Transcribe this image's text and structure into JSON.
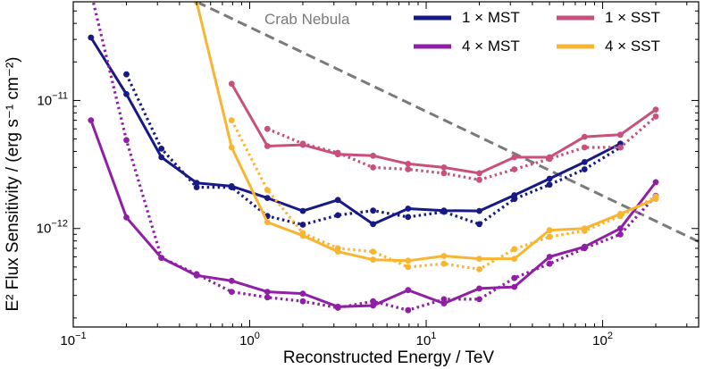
{
  "chart_data": {
    "type": "line",
    "xlabel": "Reconstructed Energy / TeV",
    "ylabel": "E² Flux Sensitivity / (erg s⁻¹ cm⁻²)",
    "xscale": "log",
    "yscale": "log",
    "xlim": [
      0.1,
      350
    ],
    "ylim": [
      1.7e-13,
      5.9e-11
    ],
    "grid": false,
    "legend_placement": "top-right",
    "xticks": [
      {
        "value": 0.1,
        "base": "10",
        "exp": "−1"
      },
      {
        "value": 1,
        "base": "10",
        "exp": "0"
      },
      {
        "value": 10,
        "base": "10",
        "exp": "1"
      },
      {
        "value": 100,
        "base": "10",
        "exp": "2"
      }
    ],
    "yticks": [
      {
        "value": 1e-12,
        "base": "10",
        "exp": "−12"
      },
      {
        "value": 1e-11,
        "base": "10",
        "exp": "−11"
      }
    ],
    "annotation": {
      "text": "Crab Nebula",
      "line": [
        [
          0.5,
          5.9e-11
        ],
        [
          350,
          7.9e-13
        ]
      ],
      "color": "#7a7a7a"
    },
    "series": [
      {
        "name": "1 × MST",
        "style": "solid",
        "color": "#171a85",
        "x": [
          0.126,
          0.2,
          0.316,
          0.5,
          0.79,
          1.26,
          2.0,
          3.16,
          5.0,
          7.9,
          12.6,
          20,
          31.6,
          50,
          79,
          126
        ],
        "y": [
          3.1e-11,
          1.12e-11,
          3.6e-12,
          2.27e-12,
          2.14e-12,
          1.73e-12,
          1.37e-12,
          1.67e-12,
          1.08e-12,
          1.43e-12,
          1.38e-12,
          1.37e-12,
          1.82e-12,
          2.45e-12,
          3.3e-12,
          4.6e-12
        ]
      },
      {
        "name": "1 × MST",
        "style": "dotted",
        "color": "#171a85",
        "x": [
          0.2,
          0.316,
          0.5,
          0.79,
          1.26,
          2.0,
          3.16,
          5.0,
          7.9,
          12.6,
          20,
          31.6,
          50,
          79,
          126
        ],
        "y": [
          1.6e-11,
          4.2e-12,
          2.1e-12,
          2.1e-12,
          1.25e-12,
          1.07e-12,
          1.27e-12,
          1.38e-12,
          1.23e-12,
          1.35e-12,
          1.08e-12,
          1.7e-12,
          2.2e-12,
          2.9e-12,
          4.3e-12
        ]
      },
      {
        "name": "1 × SST",
        "style": "solid",
        "color": "#c94f7c",
        "x": [
          0.79,
          1.26,
          2.0,
          3.16,
          5.0,
          7.9,
          12.6,
          20,
          31.6,
          50,
          79,
          126,
          200
        ],
        "y": [
          1.35e-11,
          4.4e-12,
          4.5e-12,
          3.8e-12,
          3.7e-12,
          3.2e-12,
          3e-12,
          2.7e-12,
          3.6e-12,
          3.6e-12,
          5.2e-12,
          5.4e-12,
          8.5e-12
        ]
      },
      {
        "name": "1 × SST",
        "style": "dotted",
        "color": "#c94f7c",
        "x": [
          1.26,
          2.0,
          3.16,
          5.0,
          7.9,
          12.6,
          20,
          31.6,
          50,
          79,
          126,
          200
        ],
        "y": [
          6e-12,
          4.6e-12,
          3.9e-12,
          3e-12,
          2.9e-12,
          2.7e-12,
          2.4e-12,
          2.9e-12,
          3.5e-12,
          4.3e-12,
          4.3e-12,
          7.5e-12
        ]
      },
      {
        "name": "4 × MST",
        "style": "solid",
        "color": "#8f1fa4",
        "x": [
          0.126,
          0.2,
          0.316,
          0.5,
          0.79,
          1.26,
          2.0,
          3.16,
          5.0,
          7.9,
          12.6,
          20,
          31.6,
          50,
          79,
          126,
          200
        ],
        "y": [
          7e-12,
          1.22e-12,
          5.9e-13,
          4.3e-13,
          3.9e-13,
          3.2e-13,
          3.1e-13,
          2.45e-13,
          2.5e-13,
          3.3e-13,
          2.6e-13,
          3.4e-13,
          3.5e-13,
          6e-13,
          7.2e-13,
          1e-12,
          2.3e-12
        ]
      },
      {
        "name": "4 × MST",
        "style": "dotted",
        "color": "#8f1fa4",
        "x": [
          0.126,
          0.2,
          0.316,
          0.5,
          0.79,
          1.26,
          2.0,
          3.16,
          5.0,
          7.9,
          12.6,
          20,
          31.6,
          50,
          79,
          126,
          200
        ],
        "y": [
          7e-11,
          4.9e-12,
          5.9e-13,
          4.4e-13,
          3.2e-13,
          2.9e-13,
          2.7e-13,
          2.4e-13,
          2.7e-13,
          2.3e-13,
          2.8e-13,
          2.8e-13,
          4.1e-13,
          5.3e-13,
          7e-13,
          9e-13,
          1.8e-12
        ]
      },
      {
        "name": "4 × SST",
        "style": "solid",
        "color": "#f8b531",
        "x": [
          0.5,
          0.79,
          1.26,
          2.0,
          3.16,
          5.0,
          7.9,
          12.6,
          20,
          31.6,
          50,
          79,
          126,
          200
        ],
        "y": [
          5.9e-11,
          4.3e-12,
          1.12e-12,
          8.8e-13,
          6.6e-13,
          5.7e-13,
          5.6e-13,
          6.1e-13,
          5.8e-13,
          5.8e-13,
          9.7e-13,
          1e-12,
          1.3e-12,
          1.7e-12
        ]
      },
      {
        "name": "4 × SST",
        "style": "dotted",
        "color": "#f8b531",
        "x": [
          0.79,
          1.26,
          2.0,
          3.16,
          5.0,
          7.9,
          12.6,
          20,
          31.6,
          50,
          79,
          126,
          200
        ],
        "y": [
          7e-12,
          2e-12,
          9.2e-13,
          7e-13,
          6.6e-13,
          5e-13,
          5.3e-13,
          4.8e-13,
          6.9e-13,
          8.6e-13,
          9.6e-13,
          1.25e-12,
          1.78e-12
        ]
      }
    ],
    "legend": [
      {
        "label": "1 × MST",
        "color": "#171a85"
      },
      {
        "label": "1 × SST",
        "color": "#c94f7c"
      },
      {
        "label": "4 × MST",
        "color": "#8f1fa4"
      },
      {
        "label": "4 × SST",
        "color": "#f8b531"
      }
    ]
  }
}
